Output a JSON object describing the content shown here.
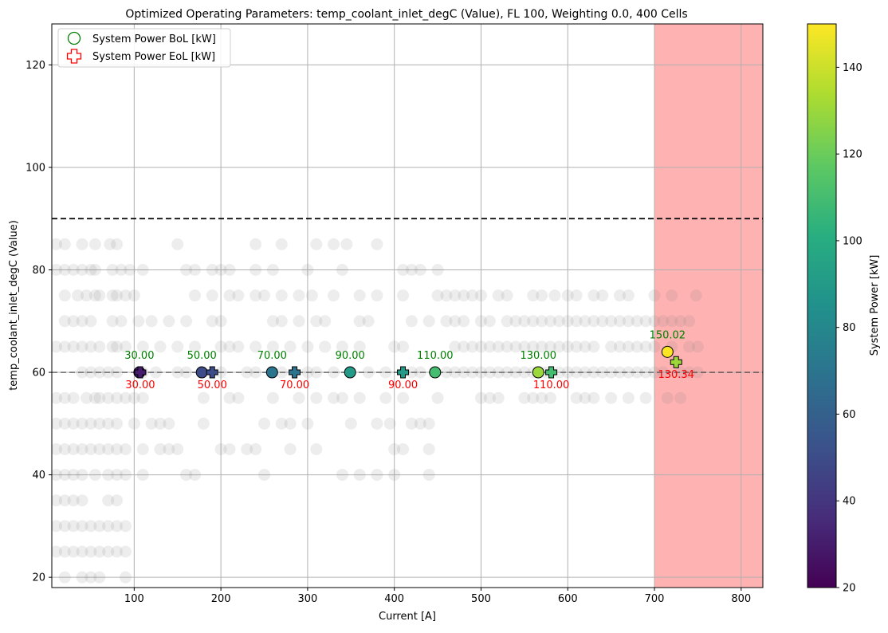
{
  "chart_data": {
    "type": "scatter",
    "title": "Optimized Operating Parameters: temp_coolant_inlet_degC (Value), FL 100, Weighting 0.0, 400 Cells",
    "xlabel": "Current [A]",
    "ylabel": "temp_coolant_inlet_degC (Value)",
    "xlim": [
      5,
      825
    ],
    "ylim": [
      18,
      128
    ],
    "xticks": [
      100,
      200,
      300,
      400,
      500,
      600,
      700,
      800
    ],
    "yticks": [
      20,
      40,
      60,
      80,
      100,
      120
    ],
    "grid": true,
    "legend_position": "top-left",
    "legend": [
      {
        "label": "System Power BoL [kW]",
        "marker": "circle",
        "color": "#008000"
      },
      {
        "label": "System Power EoL [kW]",
        "marker": "plus",
        "color": "#ff0000"
      }
    ],
    "shaded_region": {
      "x_from": 700,
      "x_to": 825,
      "color": "#ff0000",
      "opacity": 0.3
    },
    "horizontal_lines": [
      {
        "y": 90,
        "style": "dashed",
        "color": "#000000"
      },
      {
        "y": 60,
        "style": "dashed",
        "color": "#333333"
      }
    ],
    "colorbar": {
      "label": "System Power [kW]",
      "min": 20,
      "max": 150,
      "ticks": [
        20,
        40,
        60,
        80,
        100,
        120,
        140
      ],
      "colormap": "viridis"
    },
    "series": [
      {
        "name": "System Power BoL [kW]",
        "marker": "circle",
        "points": [
          {
            "x": 106,
            "y": 60,
            "power": 30,
            "label": "30.00"
          },
          {
            "x": 178,
            "y": 60,
            "power": 50,
            "label": "50.00"
          },
          {
            "x": 259,
            "y": 60,
            "power": 70,
            "label": "70.00"
          },
          {
            "x": 349,
            "y": 60,
            "power": 90,
            "label": "90.00"
          },
          {
            "x": 447,
            "y": 60,
            "power": 110,
            "label": "110.00"
          },
          {
            "x": 566,
            "y": 60,
            "power": 130,
            "label": "130.00"
          },
          {
            "x": 715,
            "y": 64,
            "power": 150.02,
            "label": "150.02"
          }
        ]
      },
      {
        "name": "System Power EoL [kW]",
        "marker": "plus",
        "points": [
          {
            "x": 107,
            "y": 60,
            "power": 30,
            "label": "30.00"
          },
          {
            "x": 190,
            "y": 60,
            "power": 50,
            "label": "50.00"
          },
          {
            "x": 285,
            "y": 60,
            "power": 70,
            "label": "70.00"
          },
          {
            "x": 410,
            "y": 60,
            "power": 90,
            "label": "90.00"
          },
          {
            "x": 581,
            "y": 60,
            "power": 110,
            "label": "110.00"
          },
          {
            "x": 725,
            "y": 62,
            "power": 130.34,
            "label": "130.34"
          }
        ]
      }
    ],
    "background_points": [
      [
        10,
        85
      ],
      [
        20,
        85
      ],
      [
        40,
        85
      ],
      [
        55,
        85
      ],
      [
        72,
        85
      ],
      [
        80,
        85
      ],
      [
        150,
        85
      ],
      [
        240,
        85
      ],
      [
        270,
        85
      ],
      [
        310,
        85
      ],
      [
        330,
        85
      ],
      [
        345,
        85
      ],
      [
        380,
        85
      ],
      [
        10,
        80
      ],
      [
        20,
        80
      ],
      [
        30,
        80
      ],
      [
        40,
        80
      ],
      [
        50,
        80
      ],
      [
        55,
        80
      ],
      [
        75,
        80
      ],
      [
        85,
        80
      ],
      [
        95,
        80
      ],
      [
        110,
        80
      ],
      [
        160,
        80
      ],
      [
        170,
        80
      ],
      [
        190,
        80
      ],
      [
        200,
        80
      ],
      [
        210,
        80
      ],
      [
        240,
        80
      ],
      [
        260,
        80
      ],
      [
        300,
        80
      ],
      [
        340,
        80
      ],
      [
        410,
        80
      ],
      [
        420,
        80
      ],
      [
        430,
        80
      ],
      [
        450,
        80
      ],
      [
        20,
        75
      ],
      [
        35,
        75
      ],
      [
        45,
        75
      ],
      [
        55,
        75
      ],
      [
        60,
        75
      ],
      [
        75,
        75
      ],
      [
        80,
        75
      ],
      [
        90,
        75
      ],
      [
        100,
        75
      ],
      [
        170,
        75
      ],
      [
        190,
        75
      ],
      [
        210,
        75
      ],
      [
        220,
        75
      ],
      [
        240,
        75
      ],
      [
        250,
        75
      ],
      [
        270,
        75
      ],
      [
        290,
        75
      ],
      [
        305,
        75
      ],
      [
        330,
        75
      ],
      [
        360,
        75
      ],
      [
        380,
        75
      ],
      [
        410,
        75
      ],
      [
        450,
        75
      ],
      [
        460,
        75
      ],
      [
        470,
        75
      ],
      [
        480,
        75
      ],
      [
        490,
        75
      ],
      [
        500,
        75
      ],
      [
        520,
        75
      ],
      [
        530,
        75
      ],
      [
        560,
        75
      ],
      [
        570,
        75
      ],
      [
        585,
        75
      ],
      [
        600,
        75
      ],
      [
        610,
        75
      ],
      [
        630,
        75
      ],
      [
        640,
        75
      ],
      [
        660,
        75
      ],
      [
        670,
        75
      ],
      [
        700,
        75
      ],
      [
        720,
        75
      ],
      [
        748,
        75
      ],
      [
        20,
        70
      ],
      [
        30,
        70
      ],
      [
        40,
        70
      ],
      [
        50,
        70
      ],
      [
        75,
        70
      ],
      [
        85,
        70
      ],
      [
        105,
        70
      ],
      [
        120,
        70
      ],
      [
        140,
        70
      ],
      [
        160,
        70
      ],
      [
        190,
        70
      ],
      [
        200,
        70
      ],
      [
        260,
        70
      ],
      [
        270,
        70
      ],
      [
        290,
        70
      ],
      [
        310,
        70
      ],
      [
        320,
        70
      ],
      [
        360,
        70
      ],
      [
        370,
        70
      ],
      [
        420,
        70
      ],
      [
        440,
        70
      ],
      [
        460,
        70
      ],
      [
        470,
        70
      ],
      [
        480,
        70
      ],
      [
        500,
        70
      ],
      [
        510,
        70
      ],
      [
        530,
        70
      ],
      [
        540,
        70
      ],
      [
        550,
        70
      ],
      [
        560,
        70
      ],
      [
        570,
        70
      ],
      [
        580,
        70
      ],
      [
        590,
        70
      ],
      [
        600,
        70
      ],
      [
        610,
        70
      ],
      [
        620,
        70
      ],
      [
        630,
        70
      ],
      [
        640,
        70
      ],
      [
        650,
        70
      ],
      [
        660,
        70
      ],
      [
        670,
        70
      ],
      [
        680,
        70
      ],
      [
        690,
        70
      ],
      [
        700,
        70
      ],
      [
        710,
        70
      ],
      [
        720,
        70
      ],
      [
        730,
        70
      ],
      [
        740,
        70
      ],
      [
        10,
        65
      ],
      [
        20,
        65
      ],
      [
        30,
        65
      ],
      [
        40,
        65
      ],
      [
        50,
        65
      ],
      [
        60,
        65
      ],
      [
        75,
        65
      ],
      [
        80,
        65
      ],
      [
        90,
        65
      ],
      [
        110,
        65
      ],
      [
        130,
        65
      ],
      [
        150,
        65
      ],
      [
        170,
        65
      ],
      [
        200,
        65
      ],
      [
        210,
        65
      ],
      [
        220,
        65
      ],
      [
        240,
        65
      ],
      [
        260,
        65
      ],
      [
        280,
        65
      ],
      [
        300,
        65
      ],
      [
        320,
        65
      ],
      [
        340,
        65
      ],
      [
        360,
        65
      ],
      [
        400,
        65
      ],
      [
        410,
        65
      ],
      [
        470,
        65
      ],
      [
        480,
        65
      ],
      [
        490,
        65
      ],
      [
        500,
        65
      ],
      [
        510,
        65
      ],
      [
        520,
        65
      ],
      [
        530,
        65
      ],
      [
        540,
        65
      ],
      [
        550,
        65
      ],
      [
        560,
        65
      ],
      [
        570,
        65
      ],
      [
        580,
        65
      ],
      [
        590,
        65
      ],
      [
        600,
        65
      ],
      [
        610,
        65
      ],
      [
        620,
        65
      ],
      [
        630,
        65
      ],
      [
        650,
        65
      ],
      [
        660,
        65
      ],
      [
        670,
        65
      ],
      [
        680,
        65
      ],
      [
        690,
        65
      ],
      [
        700,
        65
      ],
      [
        720,
        65
      ],
      [
        740,
        65
      ],
      [
        750,
        65
      ],
      [
        40,
        60
      ],
      [
        50,
        60
      ],
      [
        60,
        60
      ],
      [
        70,
        60
      ],
      [
        80,
        60
      ],
      [
        110,
        60
      ],
      [
        125,
        60
      ],
      [
        150,
        60
      ],
      [
        160,
        60
      ],
      [
        200,
        60
      ],
      [
        230,
        60
      ],
      [
        240,
        60
      ],
      [
        270,
        60
      ],
      [
        300,
        60
      ],
      [
        310,
        60
      ],
      [
        330,
        60
      ],
      [
        370,
        60
      ],
      [
        390,
        60
      ],
      [
        420,
        60
      ],
      [
        430,
        60
      ],
      [
        460,
        60
      ],
      [
        470,
        60
      ],
      [
        480,
        60
      ],
      [
        490,
        60
      ],
      [
        500,
        60
      ],
      [
        510,
        60
      ],
      [
        520,
        60
      ],
      [
        530,
        60
      ],
      [
        540,
        60
      ],
      [
        550,
        60
      ],
      [
        560,
        60
      ],
      [
        575,
        60
      ],
      [
        590,
        60
      ],
      [
        600,
        60
      ],
      [
        610,
        60
      ],
      [
        620,
        60
      ],
      [
        630,
        60
      ],
      [
        640,
        60
      ],
      [
        650,
        60
      ],
      [
        660,
        60
      ],
      [
        670,
        60
      ],
      [
        680,
        60
      ],
      [
        690,
        60
      ],
      [
        700,
        60
      ],
      [
        710,
        60
      ],
      [
        730,
        60
      ],
      [
        740,
        60
      ],
      [
        750,
        60
      ],
      [
        10,
        55
      ],
      [
        20,
        55
      ],
      [
        30,
        55
      ],
      [
        45,
        55
      ],
      [
        55,
        55
      ],
      [
        60,
        55
      ],
      [
        70,
        55
      ],
      [
        80,
        55
      ],
      [
        90,
        55
      ],
      [
        100,
        55
      ],
      [
        110,
        55
      ],
      [
        180,
        55
      ],
      [
        210,
        55
      ],
      [
        220,
        55
      ],
      [
        260,
        55
      ],
      [
        290,
        55
      ],
      [
        310,
        55
      ],
      [
        330,
        55
      ],
      [
        340,
        55
      ],
      [
        360,
        55
      ],
      [
        390,
        55
      ],
      [
        410,
        55
      ],
      [
        450,
        55
      ],
      [
        500,
        55
      ],
      [
        510,
        55
      ],
      [
        520,
        55
      ],
      [
        550,
        55
      ],
      [
        560,
        55
      ],
      [
        570,
        55
      ],
      [
        580,
        55
      ],
      [
        610,
        55
      ],
      [
        620,
        55
      ],
      [
        630,
        55
      ],
      [
        650,
        55
      ],
      [
        670,
        55
      ],
      [
        690,
        55
      ],
      [
        715,
        55
      ],
      [
        730,
        55
      ],
      [
        10,
        50
      ],
      [
        20,
        50
      ],
      [
        30,
        50
      ],
      [
        40,
        50
      ],
      [
        50,
        50
      ],
      [
        60,
        50
      ],
      [
        70,
        50
      ],
      [
        80,
        50
      ],
      [
        100,
        50
      ],
      [
        120,
        50
      ],
      [
        130,
        50
      ],
      [
        140,
        50
      ],
      [
        180,
        50
      ],
      [
        250,
        50
      ],
      [
        270,
        50
      ],
      [
        280,
        50
      ],
      [
        300,
        50
      ],
      [
        350,
        50
      ],
      [
        380,
        50
      ],
      [
        395,
        50
      ],
      [
        420,
        50
      ],
      [
        430,
        50
      ],
      [
        440,
        50
      ],
      [
        10,
        45
      ],
      [
        20,
        45
      ],
      [
        30,
        45
      ],
      [
        40,
        45
      ],
      [
        50,
        45
      ],
      [
        60,
        45
      ],
      [
        70,
        45
      ],
      [
        80,
        45
      ],
      [
        90,
        45
      ],
      [
        110,
        45
      ],
      [
        130,
        45
      ],
      [
        140,
        45
      ],
      [
        150,
        45
      ],
      [
        200,
        45
      ],
      [
        210,
        45
      ],
      [
        230,
        45
      ],
      [
        240,
        45
      ],
      [
        280,
        45
      ],
      [
        310,
        45
      ],
      [
        400,
        45
      ],
      [
        410,
        45
      ],
      [
        440,
        45
      ],
      [
        10,
        40
      ],
      [
        20,
        40
      ],
      [
        30,
        40
      ],
      [
        40,
        40
      ],
      [
        55,
        40
      ],
      [
        70,
        40
      ],
      [
        80,
        40
      ],
      [
        90,
        40
      ],
      [
        110,
        40
      ],
      [
        160,
        40
      ],
      [
        170,
        40
      ],
      [
        250,
        40
      ],
      [
        340,
        40
      ],
      [
        360,
        40
      ],
      [
        380,
        40
      ],
      [
        400,
        40
      ],
      [
        440,
        40
      ],
      [
        10,
        35
      ],
      [
        20,
        35
      ],
      [
        30,
        35
      ],
      [
        40,
        35
      ],
      [
        70,
        35
      ],
      [
        80,
        35
      ],
      [
        10,
        30
      ],
      [
        20,
        30
      ],
      [
        30,
        30
      ],
      [
        40,
        30
      ],
      [
        50,
        30
      ],
      [
        60,
        30
      ],
      [
        70,
        30
      ],
      [
        80,
        30
      ],
      [
        90,
        30
      ],
      [
        10,
        25
      ],
      [
        20,
        25
      ],
      [
        30,
        25
      ],
      [
        40,
        25
      ],
      [
        50,
        25
      ],
      [
        60,
        25
      ],
      [
        70,
        25
      ],
      [
        80,
        25
      ],
      [
        90,
        25
      ],
      [
        20,
        20
      ],
      [
        40,
        20
      ],
      [
        50,
        20
      ],
      [
        60,
        20
      ],
      [
        90,
        20
      ]
    ]
  }
}
